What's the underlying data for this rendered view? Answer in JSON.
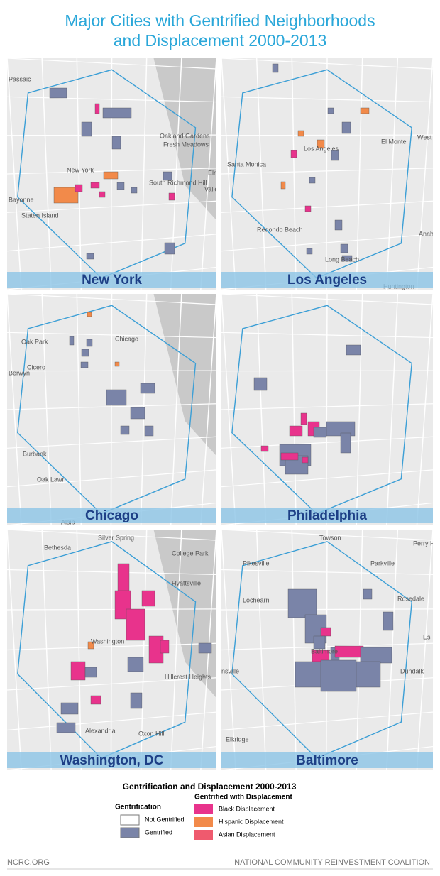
{
  "title": [
    "Major Cities with Gentrified Neighborhoods",
    "and Displacement 2000-2013"
  ],
  "maps": [
    {
      "name": "New York",
      "places": [
        "Passaic",
        "Oakland Gardens",
        "Fresh Meadows",
        "New York",
        "South Richmond Hill",
        "Bayonne",
        "Staten Island",
        "Elm",
        "Valley S"
      ]
    },
    {
      "name": "Los Angeles",
      "places": [
        "El Monte",
        "West Covina",
        "Los Angeles",
        "Santa Monica",
        "Redondo Beach",
        "Long Beach",
        "Anah",
        "Huntington"
      ]
    },
    {
      "name": "Chicago",
      "places": [
        "Chicago",
        "Oak Park",
        "Cicero",
        "Berwyn",
        "Burbank",
        "Oak Lawn",
        "Alsip"
      ]
    },
    {
      "name": "Philadelphia",
      "places": []
    },
    {
      "name": "Washington, DC",
      "places": [
        "Silver Spring",
        "Bethesda",
        "College Park",
        "Hyattsville",
        "Washington",
        "Hillcrest Heights",
        "Alexandria",
        "Oxon Hill"
      ]
    },
    {
      "name": "Baltimore",
      "places": [
        "Towson",
        "Pikesville",
        "Parkville",
        "Perry H",
        "Rosedale",
        "Lochearn",
        "Baltimore",
        "Dundalk",
        "Es",
        "Elkridge",
        "nsville"
      ]
    }
  ],
  "legend": {
    "title": "Gentrification and Displacement 2000-2013",
    "gentrification": {
      "heading": "Gentrification",
      "items": [
        {
          "label": "Not Gentrified",
          "color": "#ffffff"
        },
        {
          "label": "Gentrified",
          "color": "#7a84a8"
        }
      ]
    },
    "displacement": {
      "heading": "Gentrified with Displacement",
      "items": [
        {
          "label": "Black Displacement",
          "color": "#e8338c"
        },
        {
          "label": "Hispanic Displacement",
          "color": "#f28a4a"
        },
        {
          "label": "Asian Displacement",
          "color": "#ef5a6e"
        }
      ]
    }
  },
  "footer": {
    "left": "NCRC.ORG",
    "right": "NATIONAL COMMUNITY REINVESTMENT COALITION"
  }
}
